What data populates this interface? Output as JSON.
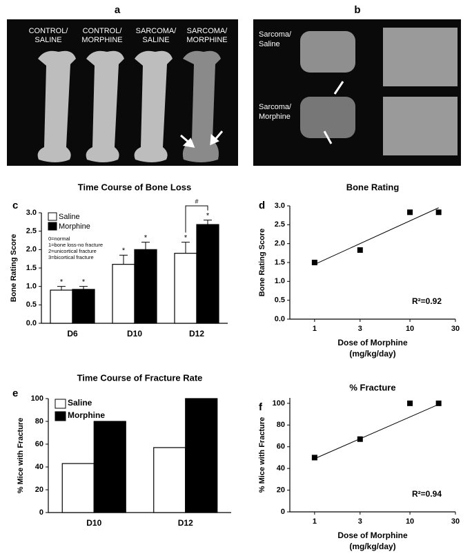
{
  "panels": {
    "a": {
      "letter": "a",
      "labels": [
        [
          "CONTROL/",
          "SALINE"
        ],
        [
          "CONTROL/",
          "MORPHINE"
        ],
        [
          "SARCOMA/",
          "SALINE"
        ],
        [
          "SARCOMA/",
          "MORPHINE"
        ]
      ]
    },
    "b": {
      "letter": "b",
      "labels": [
        [
          "Sarcoma/",
          "Saline"
        ],
        [
          "Sarcoma/",
          "Morphine"
        ]
      ]
    }
  },
  "chart_data": [
    {
      "type": "bar",
      "letter": "c",
      "title": "Time Course of Bone Loss",
      "y_label": "Bone Rating Score",
      "categories": [
        "D6",
        "D10",
        "D12"
      ],
      "series": [
        {
          "name": "Saline",
          "color": "#ffffff",
          "values": [
            0.9,
            1.6,
            1.9
          ],
          "errors": [
            0.1,
            0.25,
            0.3
          ],
          "markers": [
            "*",
            "*",
            "*"
          ]
        },
        {
          "name": "Morphine",
          "color": "#000000",
          "values": [
            0.92,
            2.0,
            2.68
          ],
          "errors": [
            0.08,
            0.2,
            0.12
          ],
          "markers": [
            "*",
            "*",
            "*"
          ]
        }
      ],
      "bracket_label": "#",
      "legend_notes": [
        "0=normal",
        "1=bone loss-no fracture",
        "2=unicortical fracture",
        "3=bicortical fracture"
      ],
      "ylim": [
        0,
        3
      ],
      "yticks": [
        {
          "value": 0,
          "label": "0.0"
        },
        0.5,
        {
          "value": 1,
          "label": "1.0"
        },
        1.5,
        {
          "value": 2,
          "label": "2.0"
        },
        2.5,
        {
          "value": 3,
          "label": "3.0"
        }
      ]
    },
    {
      "type": "scatter",
      "letter": "d",
      "title": "Bone Rating",
      "y_label": "Bone Rating Score",
      "x_label": [
        "Dose of Morphine",
        "(mg/kg/day)"
      ],
      "x": [
        1,
        3,
        10,
        20
      ],
      "values": [
        1.5,
        1.83,
        2.83,
        2.83
      ],
      "color": "#000000",
      "fit": {
        "x": [
          1,
          20
        ],
        "values": [
          1.45,
          2.95
        ]
      },
      "annotation": "R²=0.92",
      "log_x": true,
      "xlim": [
        0.55,
        30
      ],
      "xticks": [
        1,
        3,
        10,
        30
      ],
      "ylim": [
        0,
        3
      ],
      "yticks": [
        {
          "value": 0,
          "label": "0.0"
        },
        0.5,
        {
          "value": 1,
          "label": "1.0"
        },
        1.5,
        {
          "value": 2,
          "label": "2.0"
        },
        2.5,
        {
          "value": 3,
          "label": "3.0"
        }
      ]
    },
    {
      "type": "bar",
      "letter": "e",
      "title": "Time Course of Fracture Rate",
      "y_label": "% Mice with Fracture",
      "categories": [
        "D10",
        "D12"
      ],
      "series": [
        {
          "name": "Saline",
          "color": "#ffffff",
          "values": [
            43,
            57
          ]
        },
        {
          "name": "Morphine",
          "color": "#000000",
          "values": [
            80,
            100
          ]
        }
      ],
      "ylim": [
        0,
        100
      ],
      "yticks": [
        0,
        20,
        40,
        60,
        80,
        100
      ]
    },
    {
      "type": "scatter",
      "letter": "f",
      "title": "% Fracture",
      "y_label": "% Mice with Fracture",
      "x_label": [
        "Dose of Morphine",
        "(mg/kg/day)"
      ],
      "x": [
        1,
        3,
        10,
        20
      ],
      "values": [
        50,
        67,
        100,
        100
      ],
      "color": "#000000",
      "fit": {
        "x": [
          1,
          20
        ],
        "values": [
          49,
          99
        ]
      },
      "annotation": "R²=0.94",
      "log_x": true,
      "xlim": [
        0.55,
        30
      ],
      "xticks": [
        1,
        3,
        10,
        30
      ],
      "ylim": [
        0,
        105
      ],
      "yticks": [
        0,
        20,
        40,
        60,
        80,
        100
      ]
    }
  ]
}
